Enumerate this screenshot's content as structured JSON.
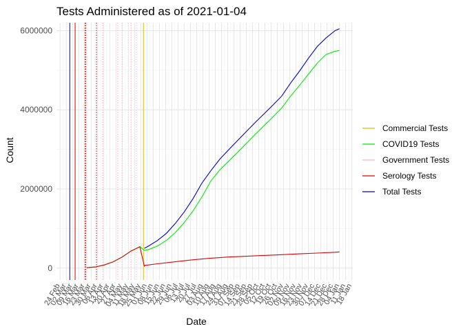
{
  "chart_data": {
    "type": "line",
    "title": "Tests Administered as of 2021-01-04",
    "xlabel": "Date",
    "ylabel": "Count",
    "ylim": [
      -300000,
      6200000
    ],
    "yticks": [
      0,
      2000000,
      4000000,
      6000000
    ],
    "ytick_labels": [
      "0",
      "2000000",
      "4000000",
      "6000000"
    ],
    "x_range_days": [
      -4,
      330
    ],
    "x_tick_labels": [
      "24 Feb",
      "02 Mar",
      "09 Mar",
      "16 Mar",
      "23 Mar",
      "30 Mar",
      "06 Apr",
      "13 Apr",
      "20 Apr",
      "27 Apr",
      "04 May",
      "11 May",
      "18 May",
      "25 May",
      "01 Jun",
      "08 Jun",
      "15 Jun",
      "22 Jun",
      "29 Jun",
      "06 Jul",
      "13 Jul",
      "20 Jul",
      "27 Jul",
      "03 Aug",
      "10 Aug",
      "17 Aug",
      "24 Aug",
      "31 Aug",
      "07 Sep",
      "14 Sep",
      "21 Sep",
      "28 Sep",
      "05 Oct",
      "12 Oct",
      "19 Oct",
      "26 Oct",
      "02 Nov",
      "09 Nov",
      "16 Nov",
      "23 Nov",
      "30 Nov",
      "07 Dec",
      "14 Dec",
      "21 Dec",
      "28 Dec",
      "04 Jan",
      "11 Jan",
      "18 Jan"
    ],
    "grid": true,
    "legend_position": "right",
    "series": [
      {
        "name": "Commercial Tests",
        "color": "#E6B800"
      },
      {
        "name": "COVID19 Tests",
        "color": "#00EE00",
        "x_days": [
          30,
          40,
          50,
          60,
          70,
          80,
          90,
          95,
          100,
          110,
          120,
          130,
          140,
          150,
          160,
          170,
          180,
          190,
          200,
          210,
          220,
          230,
          240,
          250,
          260,
          270,
          280,
          290,
          300,
          310,
          315
        ],
        "values": [
          10000,
          30000,
          80000,
          160000,
          280000,
          430000,
          540000,
          450000,
          470000,
          560000,
          700000,
          900000,
          1150000,
          1450000,
          1800000,
          2200000,
          2480000,
          2700000,
          2920000,
          3150000,
          3380000,
          3600000,
          3820000,
          4050000,
          4350000,
          4620000,
          4900000,
          5180000,
          5400000,
          5480000,
          5500000
        ]
      },
      {
        "name": "Government Tests",
        "color": "#FFB6C1"
      },
      {
        "name": "Serology Tests",
        "color": "#E00000",
        "x_days": [
          30,
          40,
          50,
          60,
          70,
          80,
          90,
          95,
          96,
          110,
          130,
          150,
          170,
          190,
          210,
          230,
          250,
          270,
          290,
          310,
          315
        ],
        "values": [
          10000,
          30000,
          80000,
          160000,
          280000,
          430000,
          540000,
          50000,
          70000,
          110000,
          160000,
          210000,
          250000,
          280000,
          300000,
          320000,
          340000,
          360000,
          380000,
          400000,
          410000
        ]
      },
      {
        "name": "Total Tests",
        "color": "#0000CC",
        "x_days": [
          95,
          100,
          110,
          120,
          130,
          140,
          150,
          160,
          170,
          180,
          190,
          200,
          210,
          220,
          230,
          240,
          250,
          260,
          270,
          280,
          290,
          300,
          310,
          315
        ],
        "values": [
          500000,
          560000,
          700000,
          880000,
          1130000,
          1420000,
          1760000,
          2150000,
          2460000,
          2750000,
          2990000,
          3220000,
          3450000,
          3680000,
          3900000,
          4120000,
          4350000,
          4680000,
          4980000,
          5300000,
          5600000,
          5820000,
          6000000,
          6050000
        ]
      }
    ],
    "vertical_lines": [
      {
        "series": "Total Tests",
        "day": 11,
        "style": "solid"
      },
      {
        "series": "Serology Tests",
        "day": 28,
        "style": "dotted"
      },
      {
        "series": "Serology Tests",
        "day": 29,
        "style": "dotted"
      },
      {
        "series": "Serology Tests",
        "day": 41,
        "style": "dotted"
      },
      {
        "series": "Government Tests",
        "day": 48,
        "style": "dotted"
      },
      {
        "series": "Government Tests",
        "day": 65,
        "style": "dotted"
      },
      {
        "series": "Government Tests",
        "day": 70,
        "style": "dotted"
      },
      {
        "series": "Government Tests",
        "day": 80,
        "style": "dotted"
      },
      {
        "series": "Government Tests",
        "day": 86,
        "style": "dotted"
      },
      {
        "series": "Serology Tests",
        "day": 17,
        "style": "solid"
      },
      {
        "series": "Commercial Tests",
        "day": 94,
        "style": "solid"
      }
    ]
  }
}
